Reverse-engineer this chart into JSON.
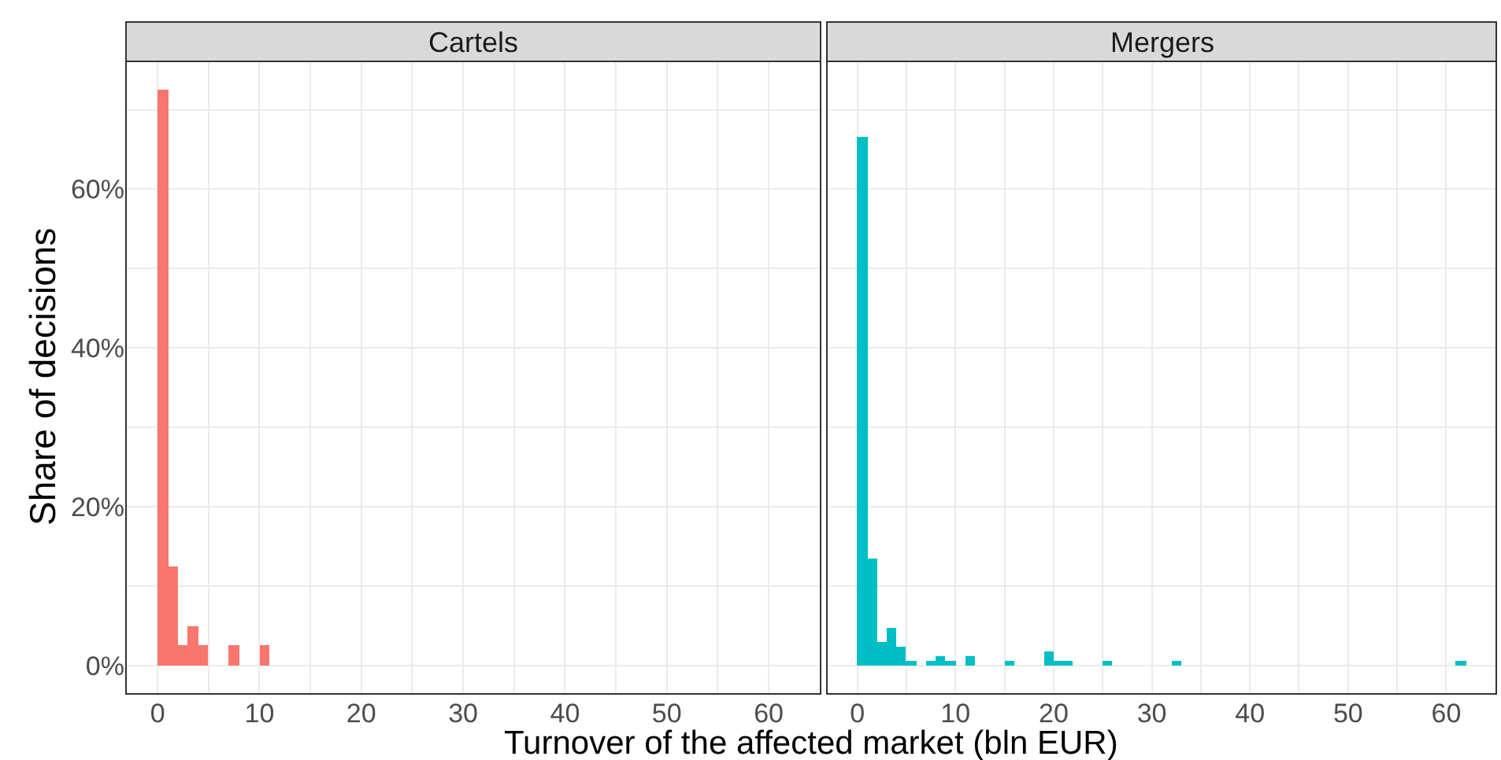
{
  "chart_data": [
    {
      "type": "histogram",
      "title": "Cartels",
      "ylabel": "Share of decisions",
      "xlabel": "Turnover of the affected market (bln EUR)",
      "bins": [
        0,
        1,
        2,
        3,
        4,
        5,
        6,
        7,
        8,
        9,
        10,
        11
      ],
      "values": [
        72.5,
        12.5,
        2.5,
        5,
        2.5,
        0,
        0,
        2.5,
        0,
        0,
        2.5
      ],
      "color": "#f8766d",
      "xlim": [
        -3.1,
        65.1
      ],
      "xticks": [
        0,
        {
          "value": 5,
          "label": null
        },
        10,
        {
          "value": 15,
          "label": null
        },
        20,
        {
          "value": 25,
          "label": null
        },
        30,
        {
          "value": 35,
          "label": null
        },
        40,
        {
          "value": 45,
          "label": null
        },
        50,
        {
          "value": 55,
          "label": null
        },
        60
      ],
      "ylim": [
        -3.6,
        76.1
      ],
      "yticks": [
        {
          "value": 0,
          "label": "0%"
        },
        {
          "value": 10,
          "label": null
        },
        {
          "value": 20,
          "label": "20%"
        },
        {
          "value": 30,
          "label": null
        },
        {
          "value": 40,
          "label": "40%"
        },
        {
          "value": 50,
          "label": null
        },
        {
          "value": 60,
          "label": "60%"
        },
        {
          "value": 70,
          "label": null
        }
      ],
      "grid": true
    },
    {
      "type": "histogram",
      "title": "Mergers",
      "bins": [
        0,
        1,
        2,
        3,
        4,
        5,
        6,
        7,
        8,
        9,
        10,
        11,
        12,
        13,
        14,
        15,
        16,
        17,
        18,
        19,
        20,
        21,
        22,
        23,
        24,
        25,
        26,
        27,
        28,
        29,
        30,
        31,
        32,
        33,
        34,
        35,
        36,
        37,
        38,
        39,
        40,
        41,
        42,
        43,
        44,
        45,
        46,
        47,
        48,
        49,
        50,
        51,
        52,
        53,
        54,
        55,
        56,
        57,
        58,
        59,
        60,
        61,
        62
      ],
      "values": [
        66.5,
        13.4,
        3,
        4.8,
        2.4,
        0.6,
        0,
        0.6,
        1.2,
        0.6,
        0,
        1.2,
        0,
        0,
        0,
        0.6,
        0,
        0,
        0,
        1.8,
        0.6,
        0.6,
        0,
        0,
        0,
        0.6,
        0,
        0,
        0,
        0,
        0,
        0,
        0.6,
        0,
        0,
        0,
        0,
        0,
        0,
        0,
        0,
        0,
        0,
        0,
        0,
        0,
        0,
        0,
        0,
        0,
        0,
        0,
        0,
        0,
        0,
        0,
        0,
        0,
        0,
        0,
        0,
        0.6
      ],
      "color": "#00bfc4",
      "xlim": [
        -3.1,
        65.1
      ],
      "xticks": [
        0,
        {
          "value": 5,
          "label": null
        },
        10,
        {
          "value": 15,
          "label": null
        },
        20,
        {
          "value": 25,
          "label": null
        },
        30,
        {
          "value": 35,
          "label": null
        },
        40,
        {
          "value": 45,
          "label": null
        },
        50,
        {
          "value": 55,
          "label": null
        },
        60
      ],
      "ylim": [
        -3.6,
        76.1
      ],
      "yticks": [
        {
          "value": 0,
          "label": null
        },
        {
          "value": 10,
          "label": null
        },
        {
          "value": 20,
          "label": null
        },
        {
          "value": 30,
          "label": null
        },
        {
          "value": 40,
          "label": null
        },
        {
          "value": 50,
          "label": null
        },
        {
          "value": 60,
          "label": null
        },
        {
          "value": 70,
          "label": null
        }
      ],
      "grid": true,
      "tick_labels": "x"
    }
  ]
}
